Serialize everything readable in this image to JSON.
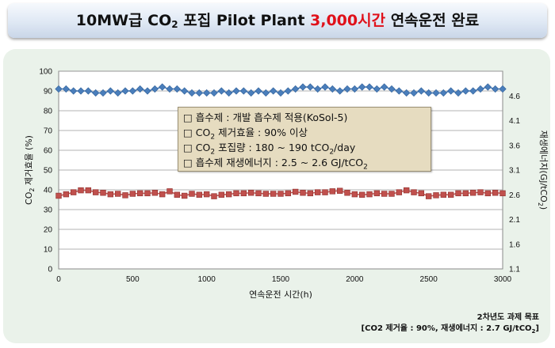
{
  "header": {
    "title_prefix": "10MW급 CO",
    "title_sub": "2",
    "title_mid": " 포집 Pilot Plant ",
    "title_highlight": "3,000시간",
    "title_suffix": " 연속운전 완료"
  },
  "legend": {
    "line1": "□ 흡수제 : 개발 흡수제 적용(KoSol-5)",
    "line2_a": "□ CO",
    "line2_sub": "2",
    "line2_b": " 제거효율 : 90% 이상",
    "line3_a": "□ CO",
    "line3_sub": "2",
    "line3_b": " 포집량 : 180 ~ 190 tCO",
    "line3_sub2": "2",
    "line3_c": "/day",
    "line4_a": "□ 흡수제 재생에너지 : 2.5 ~ 2.6 GJ/tCO",
    "line4_sub": "2"
  },
  "goal": {
    "line1": "2차년도 과제 목표",
    "line2_a": "[CO2 제거율 : 90%, 재생에너지 : 2.7 GJ/tCO",
    "line2_sub": "2",
    "line2_b": "]"
  },
  "chart_data": {
    "type": "line",
    "x": [
      0,
      50,
      100,
      150,
      200,
      250,
      300,
      350,
      400,
      450,
      500,
      550,
      600,
      650,
      700,
      750,
      800,
      850,
      900,
      950,
      1000,
      1050,
      1100,
      1150,
      1200,
      1250,
      1300,
      1350,
      1400,
      1450,
      1500,
      1550,
      1600,
      1650,
      1700,
      1750,
      1800,
      1850,
      1900,
      1950,
      2000,
      2050,
      2100,
      2150,
      2200,
      2250,
      2300,
      2350,
      2400,
      2450,
      2500,
      2550,
      2600,
      2650,
      2700,
      2750,
      2800,
      2850,
      2900,
      2950,
      3000
    ],
    "xlabel": "연속운전 시간(h)",
    "ylabel_left": "CO2 제거효율 (%)",
    "ylabel_right": "재생에너지(GJ/tCO2)",
    "xlim": [
      0,
      3000
    ],
    "ylim_left": [
      0,
      100
    ],
    "ylim_right": [
      1.1,
      5.1
    ],
    "x_ticks": [
      0,
      500,
      1000,
      1500,
      2000,
      2500,
      3000
    ],
    "y_ticks_left": [
      0,
      10,
      20,
      30,
      40,
      50,
      60,
      70,
      80,
      90,
      100
    ],
    "y_ticks_right": [
      "1.1",
      "1.6",
      "2.1",
      "2.6",
      "3.1",
      "3.6",
      "4.1",
      "4.6"
    ],
    "grid": true,
    "series": [
      {
        "axis": "left",
        "color": "#4a7ebb",
        "marker": "diamond",
        "values": [
          91,
          91,
          90,
          90,
          90,
          89,
          89,
          90,
          89,
          90,
          90,
          91,
          90,
          91,
          92,
          91,
          91,
          90,
          89,
          89,
          89,
          89,
          90,
          89,
          90,
          90,
          89,
          90,
          89,
          90,
          89,
          90,
          91,
          92,
          92,
          91,
          92,
          91,
          90,
          91,
          91,
          92,
          92,
          91,
          92,
          91,
          90,
          89,
          89,
          90,
          89,
          89,
          89,
          90,
          89,
          90,
          90,
          91,
          92,
          91,
          91
        ],
        "y_axis_values_note": ""
      },
      {
        "axis": "right",
        "color": "#c0504d",
        "marker": "square",
        "values": [
          2.58,
          2.61,
          2.65,
          2.69,
          2.69,
          2.65,
          2.64,
          2.61,
          2.62,
          2.59,
          2.62,
          2.63,
          2.63,
          2.64,
          2.61,
          2.67,
          2.6,
          2.58,
          2.62,
          2.6,
          2.61,
          2.57,
          2.6,
          2.61,
          2.63,
          2.63,
          2.64,
          2.63,
          2.62,
          2.62,
          2.62,
          2.63,
          2.66,
          2.64,
          2.63,
          2.65,
          2.65,
          2.67,
          2.68,
          2.64,
          2.61,
          2.6,
          2.61,
          2.63,
          2.62,
          2.62,
          2.65,
          2.69,
          2.65,
          2.63,
          2.57,
          2.59,
          2.6,
          2.6,
          2.63,
          2.63,
          2.64,
          2.65,
          2.63,
          2.64,
          2.63
        ]
      }
    ]
  }
}
